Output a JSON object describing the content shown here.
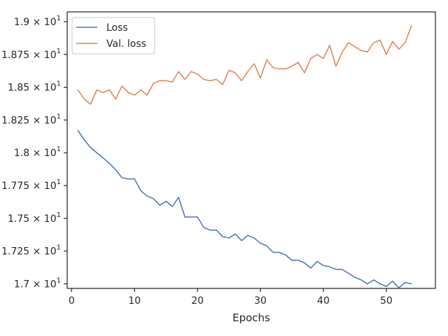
{
  "chart_data": {
    "type": "line",
    "title": "",
    "xlabel": "Epochs",
    "ylabel": "",
    "xlim": [
      -0.7,
      57.8
    ],
    "ylim": [
      16.965,
      19.075
    ],
    "x_ticks": [
      0,
      10,
      20,
      30,
      40,
      50
    ],
    "x_tick_labels": [
      "0",
      "10",
      "20",
      "30",
      "40",
      "50"
    ],
    "y_ticks": [
      17.0,
      17.25,
      17.5,
      17.75,
      18.0,
      18.25,
      18.5,
      18.75,
      19.0
    ],
    "y_tick_labels": [
      {
        "mantissa": "1.7",
        "base": "10",
        "exp": "1"
      },
      {
        "mantissa": "1.725",
        "base": "10",
        "exp": "1"
      },
      {
        "mantissa": "1.75",
        "base": "10",
        "exp": "1"
      },
      {
        "mantissa": "1.775",
        "base": "10",
        "exp": "1"
      },
      {
        "mantissa": "1.8",
        "base": "10",
        "exp": "1"
      },
      {
        "mantissa": "1.825",
        "base": "10",
        "exp": "1"
      },
      {
        "mantissa": "1.85",
        "base": "10",
        "exp": "1"
      },
      {
        "mantissa": "1.875",
        "base": "10",
        "exp": "1"
      },
      {
        "mantissa": "1.9",
        "base": "10",
        "exp": "1"
      }
    ],
    "grid": false,
    "legend_position": "top-left",
    "x": [
      1,
      2,
      3,
      4,
      5,
      6,
      7,
      8,
      9,
      10,
      11,
      12,
      13,
      14,
      15,
      16,
      17,
      18,
      19,
      20,
      21,
      22,
      23,
      24,
      25,
      26,
      27,
      28,
      29,
      30,
      31,
      32,
      33,
      34,
      35,
      36,
      37,
      38,
      39,
      40,
      41,
      42,
      43,
      44,
      45,
      46,
      47,
      48,
      49,
      50,
      51,
      52,
      53,
      54
    ],
    "series": [
      {
        "name": "Loss",
        "color": "#4c72b0",
        "values": [
          18.17,
          18.1,
          18.04,
          18.0,
          17.96,
          17.92,
          17.87,
          17.81,
          17.8,
          17.8,
          17.71,
          17.67,
          17.65,
          17.6,
          17.63,
          17.59,
          17.66,
          17.51,
          17.51,
          17.51,
          17.43,
          17.41,
          17.41,
          17.36,
          17.35,
          17.38,
          17.33,
          17.37,
          17.35,
          17.31,
          17.29,
          17.24,
          17.24,
          17.22,
          17.18,
          17.18,
          17.16,
          17.12,
          17.17,
          17.14,
          17.13,
          17.11,
          17.11,
          17.08,
          17.05,
          17.03,
          17.0,
          17.03,
          17.0,
          16.98,
          17.02,
          16.97,
          17.01,
          17.0
        ]
      },
      {
        "name": "Val. loss",
        "color": "#dd8452",
        "values": [
          18.48,
          18.41,
          18.37,
          18.48,
          18.46,
          18.48,
          18.41,
          18.51,
          18.46,
          18.44,
          18.48,
          18.44,
          18.53,
          18.55,
          18.55,
          18.54,
          18.62,
          18.56,
          18.62,
          18.6,
          18.56,
          18.55,
          18.56,
          18.52,
          18.63,
          18.61,
          18.55,
          18.62,
          18.68,
          18.57,
          18.71,
          18.65,
          18.64,
          18.64,
          18.66,
          18.69,
          18.61,
          18.72,
          18.75,
          18.72,
          18.82,
          18.66,
          18.77,
          18.84,
          18.81,
          18.78,
          18.77,
          18.84,
          18.86,
          18.75,
          18.85,
          18.79,
          18.84,
          18.97
        ]
      }
    ]
  }
}
